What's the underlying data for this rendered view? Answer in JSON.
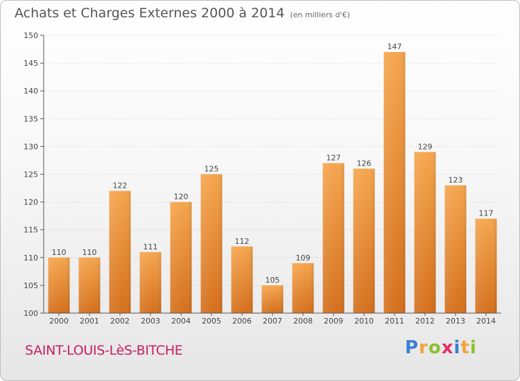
{
  "chart_data": {
    "type": "bar",
    "title": "Achats et Charges Externes 2000 à 2014",
    "subtitle": "(en milliers d'€)",
    "categories": [
      "2000",
      "2001",
      "2002",
      "2003",
      "2004",
      "2005",
      "2006",
      "2007",
      "2008",
      "2009",
      "2010",
      "2011",
      "2012",
      "2013",
      "2014"
    ],
    "values": [
      110,
      110,
      122,
      111,
      120,
      125,
      112,
      105,
      109,
      127,
      126,
      147,
      129,
      123,
      117
    ],
    "ylim": [
      100,
      150
    ],
    "yticks": [
      100,
      105,
      110,
      115,
      120,
      125,
      130,
      135,
      140,
      145,
      150
    ],
    "xlabel": "",
    "ylabel": "",
    "bar_color": "#f09a3e",
    "bar_color_dark": "#d4731f"
  },
  "footer": {
    "place": "SAINT-LOUIS-LèS-BITCHE",
    "brand_letters": [
      "P",
      "r",
      "o",
      "x",
      "i",
      "t",
      "i"
    ]
  },
  "colors": {
    "title": "#555555",
    "place": "#c81e64"
  }
}
